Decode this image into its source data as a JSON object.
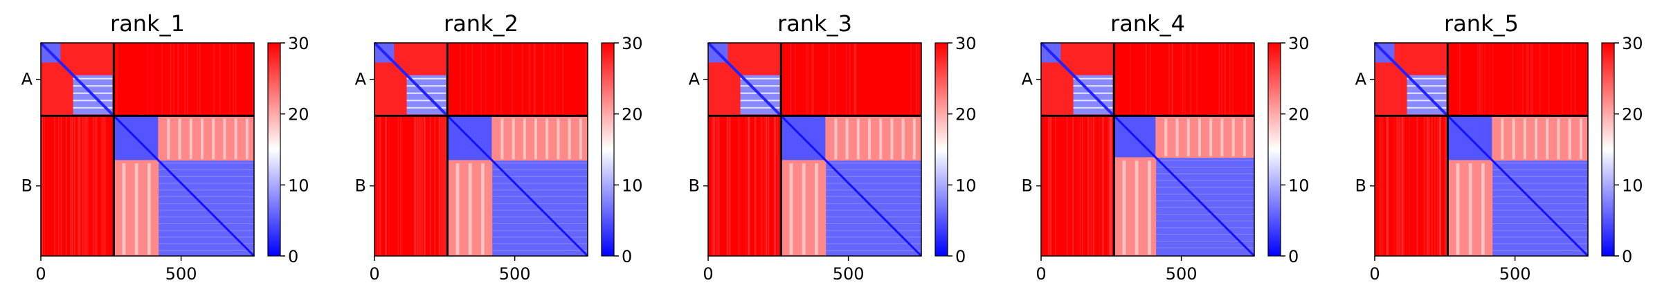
{
  "chart_data": {
    "type": "heatmap",
    "description": "Predicted aligned error (PAE) matrices, 5 panels, chains A and B",
    "colormap": {
      "name": "bwr",
      "colors": [
        "#0000ff",
        "#ffffff",
        "#ff0000"
      ],
      "vmin": 0,
      "vmax": 30
    },
    "colorbar_ticks": [
      0,
      10,
      20,
      30
    ],
    "x_ticks": [
      0,
      500
    ],
    "xlim": [
      0,
      760
    ],
    "ylim": [
      760,
      0
    ],
    "chains": [
      {
        "label": "A",
        "start": 0,
        "end": 260
      },
      {
        "label": "B",
        "start": 260,
        "end": 760
      }
    ],
    "chain_boundary": 260,
    "panels": [
      {
        "title": "rank_1",
        "b_domain_split": 420
      },
      {
        "title": "rank_2",
        "b_domain_split": 420
      },
      {
        "title": "rank_3",
        "b_domain_split": 420
      },
      {
        "title": "rank_4",
        "b_domain_split": 410
      },
      {
        "title": "rank_5",
        "b_domain_split": 420
      }
    ],
    "approx_values": {
      "inter_chain": 30,
      "chain_A_diagonal": 2,
      "chain_A_inner_block": 8,
      "chain_B_first_domain": 5,
      "chain_B_second_domain": 6,
      "chain_B_interdomain": 22
    }
  }
}
